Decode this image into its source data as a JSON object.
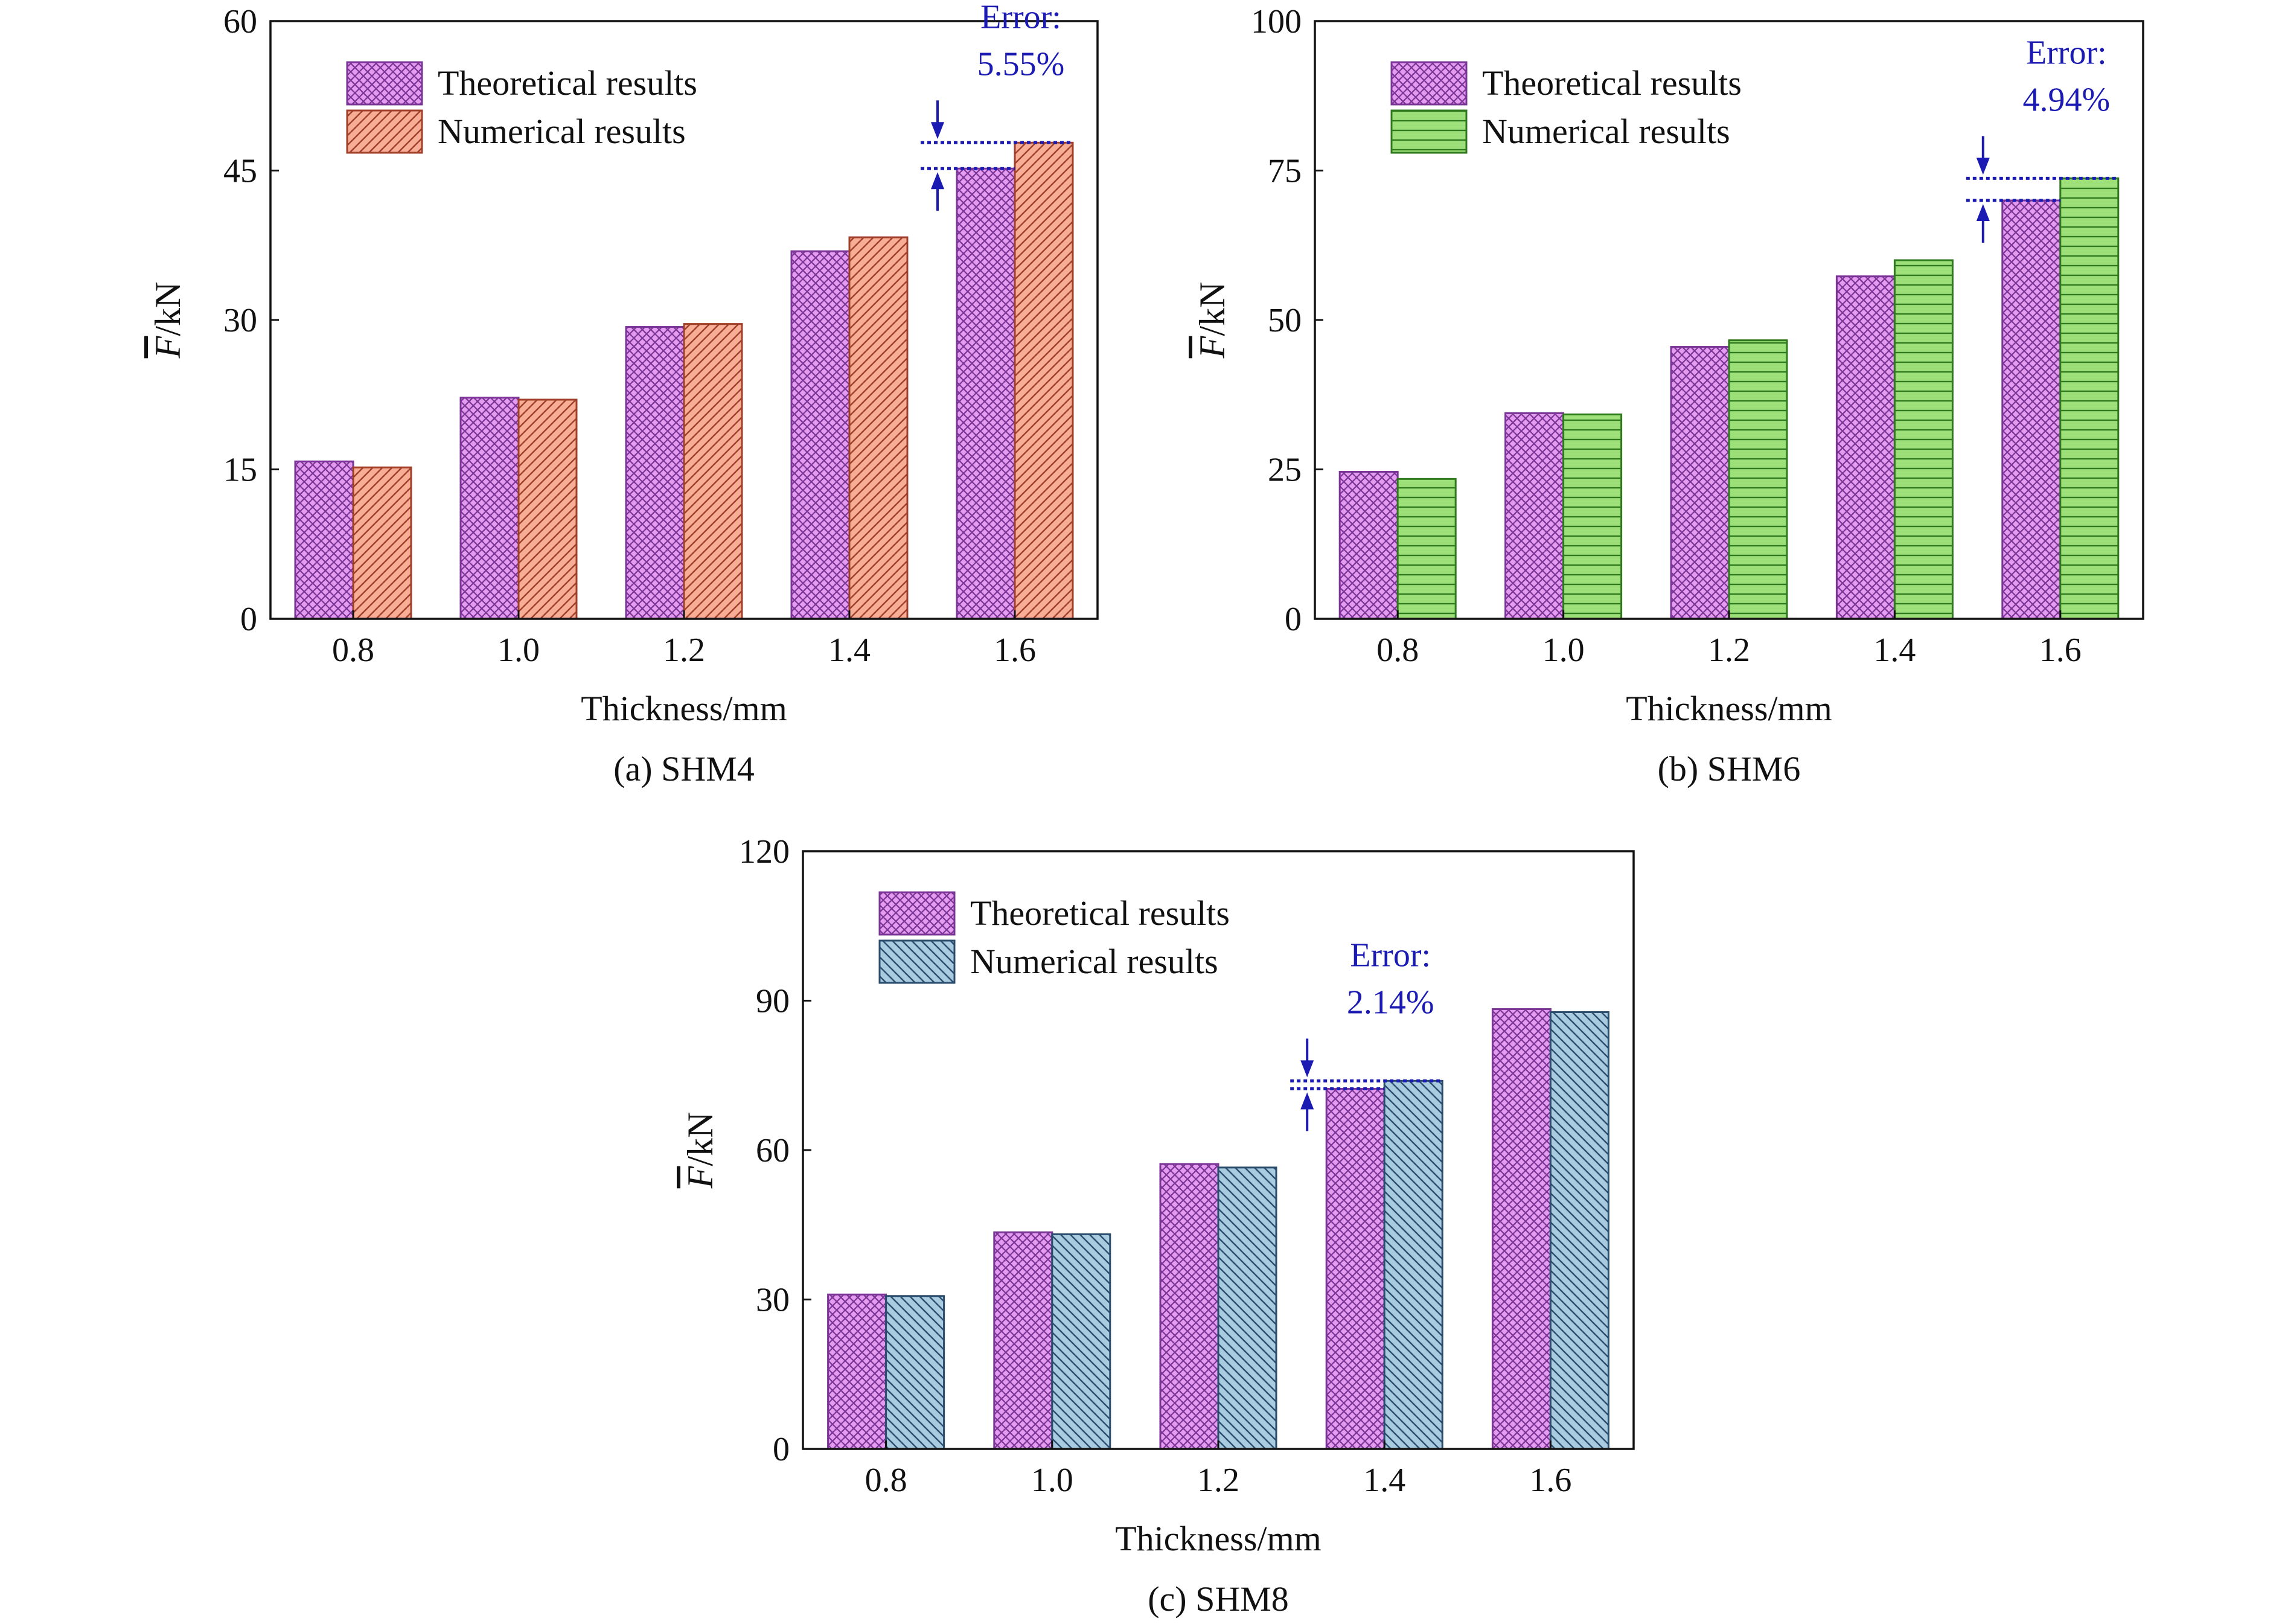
{
  "figure": {
    "legend_theoretical": "Theoretical results",
    "legend_numerical": "Numerical results",
    "error_label": "Error:"
  },
  "colors": {
    "theoretical_fill": "#e59cf0",
    "theoretical_hatch": "#7a3596",
    "numerical_fill_a": "#f7ad96",
    "numerical_hatch_a": "#a0402a",
    "numerical_fill_b": "#9de07a",
    "numerical_hatch_b": "#2f7a1e",
    "numerical_fill_c": "#a9cbe0",
    "numerical_hatch_c": "#2c4e6e",
    "annotation": "#1b1bb4"
  },
  "chart_data": [
    {
      "type": "bar",
      "caption": "(a) SHM4",
      "xlabel": "Thickness/mm",
      "ylabel_symbol": "F",
      "ylabel_unit": "/kN",
      "categories": [
        "0.8",
        "1.0",
        "1.2",
        "1.4",
        "1.6"
      ],
      "ylim": [
        0,
        60
      ],
      "yticks": [
        0,
        15,
        30,
        45,
        60
      ],
      "series": [
        {
          "name": "Theoretical results",
          "values": [
            15.8,
            22.2,
            29.3,
            36.9,
            45.2
          ]
        },
        {
          "name": "Numerical results",
          "values": [
            15.2,
            22.0,
            29.6,
            38.3,
            47.8
          ]
        }
      ],
      "annotation": {
        "label": "Error:",
        "value": "5.55%",
        "category": "1.6"
      },
      "legend": "top-left",
      "grid": false
    },
    {
      "type": "bar",
      "caption": "(b) SHM6",
      "xlabel": "Thickness/mm",
      "ylabel_symbol": "F",
      "ylabel_unit": "/kN",
      "categories": [
        "0.8",
        "1.0",
        "1.2",
        "1.4",
        "1.6"
      ],
      "ylim": [
        0,
        100
      ],
      "yticks": [
        0,
        25,
        50,
        75,
        100
      ],
      "series": [
        {
          "name": "Theoretical results",
          "values": [
            24.6,
            34.4,
            45.5,
            57.3,
            70.0
          ]
        },
        {
          "name": "Numerical results",
          "values": [
            23.4,
            34.2,
            46.6,
            60.0,
            73.7
          ]
        }
      ],
      "annotation": {
        "label": "Error:",
        "value": "4.94%",
        "category": "1.6"
      },
      "legend": "top-left",
      "grid": false
    },
    {
      "type": "bar",
      "caption": "(c) SHM8",
      "xlabel": "Thickness/mm",
      "ylabel_symbol": "F",
      "ylabel_unit": "/kN",
      "categories": [
        "0.8",
        "1.0",
        "1.2",
        "1.4",
        "1.6"
      ],
      "ylim": [
        0,
        120
      ],
      "yticks": [
        0,
        30,
        60,
        90,
        120
      ],
      "series": [
        {
          "name": "Theoretical results",
          "values": [
            31.0,
            43.5,
            57.2,
            72.3,
            88.3
          ]
        },
        {
          "name": "Numerical results",
          "values": [
            30.7,
            43.1,
            56.5,
            73.9,
            87.7
          ]
        }
      ],
      "annotation": {
        "label": "Error:",
        "value": "2.14%",
        "category": "1.4"
      },
      "legend": "top-left",
      "grid": false
    }
  ]
}
